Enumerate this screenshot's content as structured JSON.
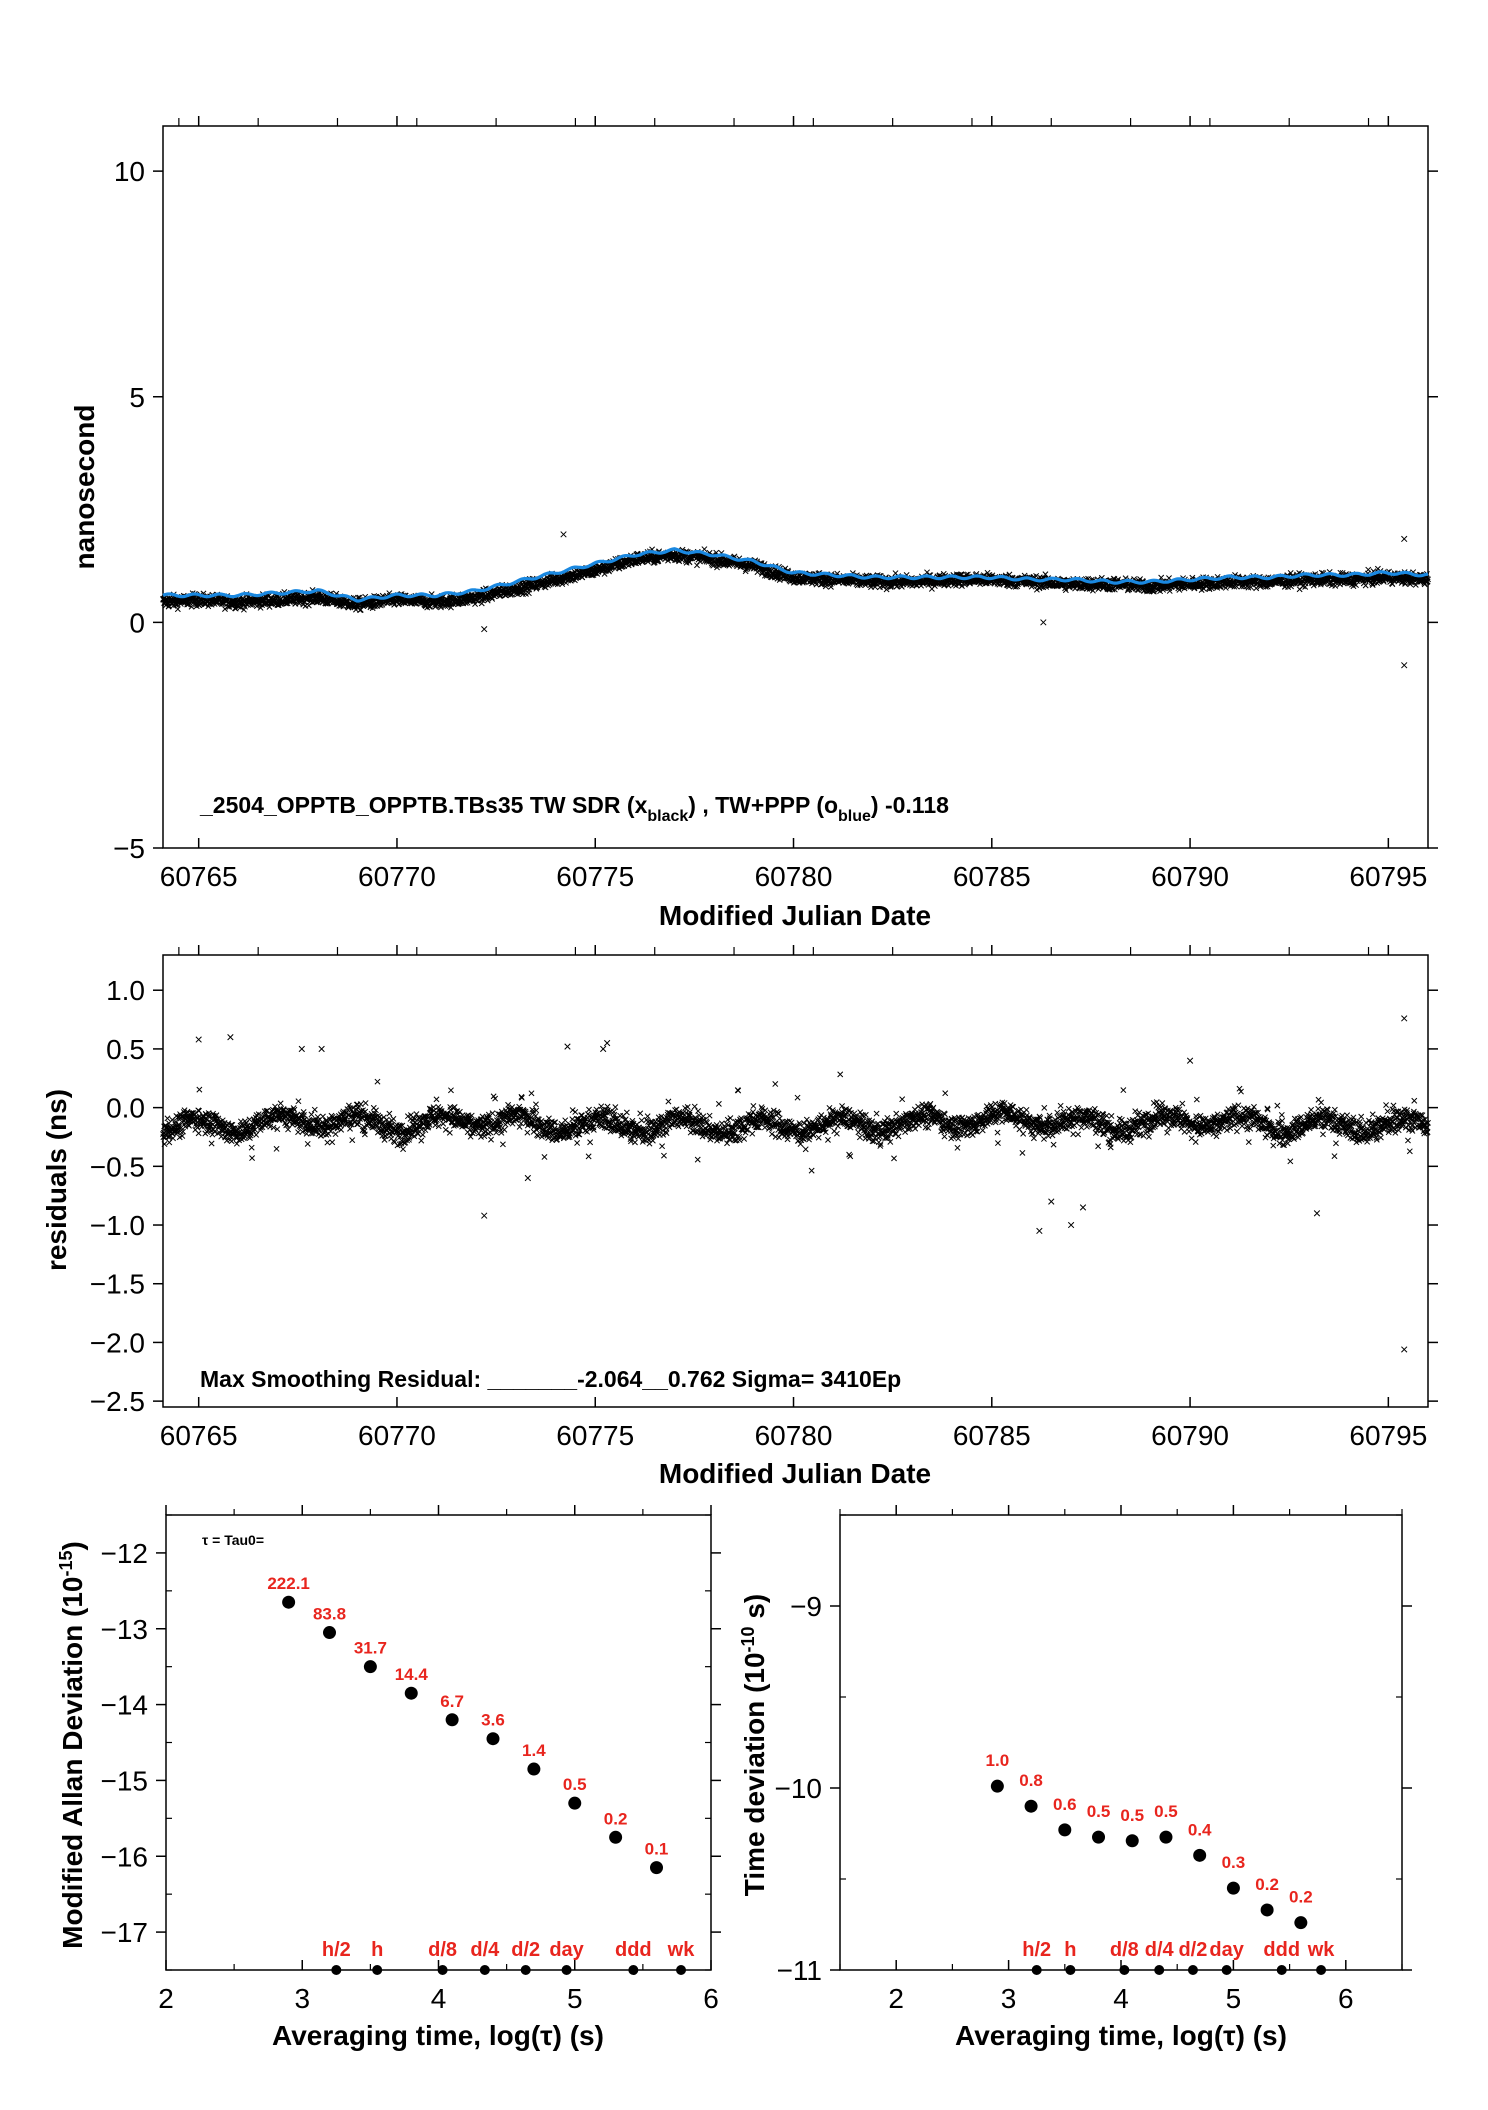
{
  "chart_data": [
    {
      "type": "scatter",
      "title": "",
      "xlabel": "Modified Julian Date",
      "ylabel": "nanosecond",
      "xlim": [
        60764.1,
        60796.0
      ],
      "ylim": [
        -5,
        11
      ],
      "xticks": [
        60765,
        60770,
        60775,
        60780,
        60785,
        60790,
        60795
      ],
      "xtick_labels": [
        "60765",
        "60770",
        "60775",
        "60780",
        "60785",
        "60790",
        "60795"
      ],
      "yticks": [
        -5,
        0,
        5,
        10
      ],
      "ytick_labels": [
        "−5",
        "0",
        "5",
        "10"
      ],
      "annotation": {
        "prefix": "_2504_OPPTB_OPPTB.TBs35     TW SDR (x",
        "sub1": "black",
        "middle": ") ,  TW+PPP (o",
        "sub2": "blue",
        "suffix": ")  -0.118"
      },
      "series": [
        {
          "marker": "x",
          "color": "#000000",
          "trend_x": [
            60764.1,
            60765,
            60766,
            60767,
            60768,
            60769,
            60770,
            60771,
            60772,
            60773,
            60774,
            60775,
            60776,
            60777,
            60778,
            60779,
            60780,
            60781,
            60782,
            60783,
            60784,
            60785,
            60786,
            60787,
            60788,
            60789,
            60790,
            60791,
            60792,
            60793,
            60794,
            60795,
            60796
          ],
          "trend_y": [
            0.45,
            0.5,
            0.45,
            0.5,
            0.55,
            0.4,
            0.5,
            0.45,
            0.55,
            0.75,
            0.95,
            1.15,
            1.4,
            1.5,
            1.4,
            1.25,
            1.0,
            0.95,
            0.9,
            0.9,
            0.95,
            0.95,
            0.9,
            0.85,
            0.85,
            0.8,
            0.85,
            0.9,
            0.9,
            0.95,
            0.95,
            1.0,
            0.95
          ],
          "n_points": 3410,
          "outliers": [
            [
              60795.4,
              -0.95
            ],
            [
              60795.4,
              1.85
            ],
            [
              60774.2,
              1.95
            ],
            [
              60772.2,
              -0.15
            ],
            [
              60786.3,
              0.0
            ],
            [
              60784.2,
              1.05
            ]
          ]
        },
        {
          "marker": "o",
          "color": "#1a88e0",
          "x": [
            60764.1,
            60765,
            60766,
            60767,
            60768,
            60769,
            60770,
            60771,
            60772,
            60773,
            60774,
            60775,
            60776,
            60777,
            60778,
            60779,
            60780,
            60781,
            60782,
            60783,
            60784,
            60785,
            60786,
            60787,
            60788,
            60789,
            60790,
            60791,
            60792,
            60793,
            60794,
            60795,
            60796
          ],
          "y": [
            0.6,
            0.6,
            0.6,
            0.65,
            0.7,
            0.5,
            0.6,
            0.6,
            0.7,
            0.9,
            1.1,
            1.3,
            1.5,
            1.6,
            1.5,
            1.35,
            1.1,
            1.05,
            1.0,
            1.0,
            1.0,
            1.0,
            0.95,
            0.95,
            0.9,
            0.9,
            0.95,
            1.0,
            1.0,
            1.05,
            1.05,
            1.1,
            1.05
          ]
        }
      ]
    },
    {
      "type": "scatter",
      "title": "",
      "xlabel": "Modified Julian Date",
      "ylabel": "residuals (ns)",
      "xlim": [
        60764.1,
        60796.0
      ],
      "ylim": [
        -2.55,
        1.3
      ],
      "xticks": [
        60765,
        60770,
        60775,
        60780,
        60785,
        60790,
        60795
      ],
      "xtick_labels": [
        "60765",
        "60770",
        "60775",
        "60780",
        "60785",
        "60790",
        "60795"
      ],
      "yticks": [
        -2.5,
        -2.0,
        -1.5,
        -1.0,
        -0.5,
        0.0,
        0.5,
        1.0
      ],
      "ytick_labels": [
        "−2.5",
        "−2.0",
        "−1.5",
        "−1.0",
        "−0.5",
        "0.0",
        "0.5",
        "1.0"
      ],
      "annotation": "Max Smoothing Residual: _______-2.064__0.762  Sigma= 3410Ep",
      "series": [
        {
          "marker": "x",
          "color": "#000000",
          "trend_x": [
            60764.1,
            60766,
            60768,
            60770,
            60772,
            60774,
            60776,
            60778,
            60780,
            60782,
            60784,
            60786,
            60788,
            60790,
            60792,
            60794,
            60796
          ],
          "trend_y": [
            -0.15,
            -0.15,
            -0.1,
            -0.15,
            -0.1,
            -0.15,
            -0.15,
            -0.15,
            -0.15,
            -0.15,
            -0.1,
            -0.1,
            -0.15,
            -0.1,
            -0.15,
            -0.15,
            -0.15
          ],
          "n_points": 3410,
          "outliers": [
            [
              60795.4,
              -2.06
            ],
            [
              60795.4,
              0.76
            ],
            [
              60786.2,
              -1.05
            ],
            [
              60787.0,
              -1.0
            ],
            [
              60787.3,
              -0.85
            ],
            [
              60772.2,
              -0.92
            ],
            [
              60793.2,
              -0.9
            ],
            [
              60765.0,
              0.58
            ],
            [
              60765.8,
              0.6
            ],
            [
              60767.6,
              0.5
            ],
            [
              60768.1,
              0.5
            ],
            [
              60774.3,
              0.52
            ],
            [
              60775.2,
              0.5
            ],
            [
              60775.3,
              0.55
            ],
            [
              60790.0,
              0.4
            ],
            [
              60773.3,
              -0.6
            ],
            [
              60786.5,
              -0.8
            ]
          ]
        }
      ]
    },
    {
      "type": "scatter",
      "title": "",
      "xlabel": "Averaging time, log(τ) (s)",
      "ylabel": "Modified Allan Deviation (10",
      "ylabel_sup": "-15",
      "ylabel_end": ")",
      "xlim": [
        2,
        6
      ],
      "ylim": [
        -17.5,
        -11.5
      ],
      "xticks": [
        2,
        3,
        4,
        5,
        6
      ],
      "xtick_labels": [
        "2",
        "3",
        "4",
        "5",
        "6"
      ],
      "yticks": [
        -17,
        -16,
        -15,
        -14,
        -13,
        -12
      ],
      "ytick_labels": [
        "−17",
        "−16",
        "−15",
        "−14",
        "−13",
        "−12"
      ],
      "note": "τ = Tau0=",
      "x": [
        2.9,
        3.2,
        3.5,
        3.8,
        4.1,
        4.4,
        4.7,
        5.0,
        5.3,
        5.6
      ],
      "y": [
        -12.65,
        -13.05,
        -13.5,
        -13.85,
        -14.2,
        -14.45,
        -14.85,
        -15.3,
        -15.75,
        -16.15
      ],
      "point_labels": [
        "222.1",
        "83.8",
        "31.7",
        "14.4",
        "6.7",
        "3.6",
        "1.4",
        "0.5",
        "0.2",
        "0.1"
      ],
      "markers_x": [
        3.25,
        3.55,
        4.03,
        4.34,
        4.64,
        4.94,
        5.43,
        5.78
      ],
      "markers": [
        "h/2",
        "h",
        "d/8",
        "d/4",
        "d/2",
        "day",
        "ddd",
        "wk"
      ]
    },
    {
      "type": "scatter",
      "title": "",
      "xlabel": "Averaging time, log(τ) (s)",
      "ylabel": "Time deviation (10",
      "ylabel_sup": "-10",
      "ylabel_end": " s)",
      "xlim": [
        1.5,
        6.5
      ],
      "ylim": [
        -11,
        -8.5
      ],
      "xticks": [
        2,
        3,
        4,
        5,
        6
      ],
      "xtick_labels": [
        "2",
        "3",
        "4",
        "5",
        "6"
      ],
      "yticks": [
        -11,
        -10,
        -9
      ],
      "ytick_labels": [
        "−11",
        "−10",
        "−9"
      ],
      "x": [
        2.9,
        3.2,
        3.5,
        3.8,
        4.1,
        4.4,
        4.7,
        5.0,
        5.3,
        5.6
      ],
      "y": [
        -9.99,
        -10.1,
        -10.23,
        -10.27,
        -10.29,
        -10.27,
        -10.37,
        -10.55,
        -10.67,
        -10.74
      ],
      "point_labels": [
        "1.0",
        "0.8",
        "0.6",
        "0.5",
        "0.5",
        "0.5",
        "0.4",
        "0.3",
        "0.2",
        "0.2"
      ],
      "markers_x": [
        3.25,
        3.55,
        4.03,
        4.34,
        4.64,
        4.94,
        5.43,
        5.78
      ],
      "markers": [
        "h/2",
        "h",
        "d/8",
        "d/4",
        "d/2",
        "day",
        "ddd",
        "wk"
      ]
    }
  ]
}
